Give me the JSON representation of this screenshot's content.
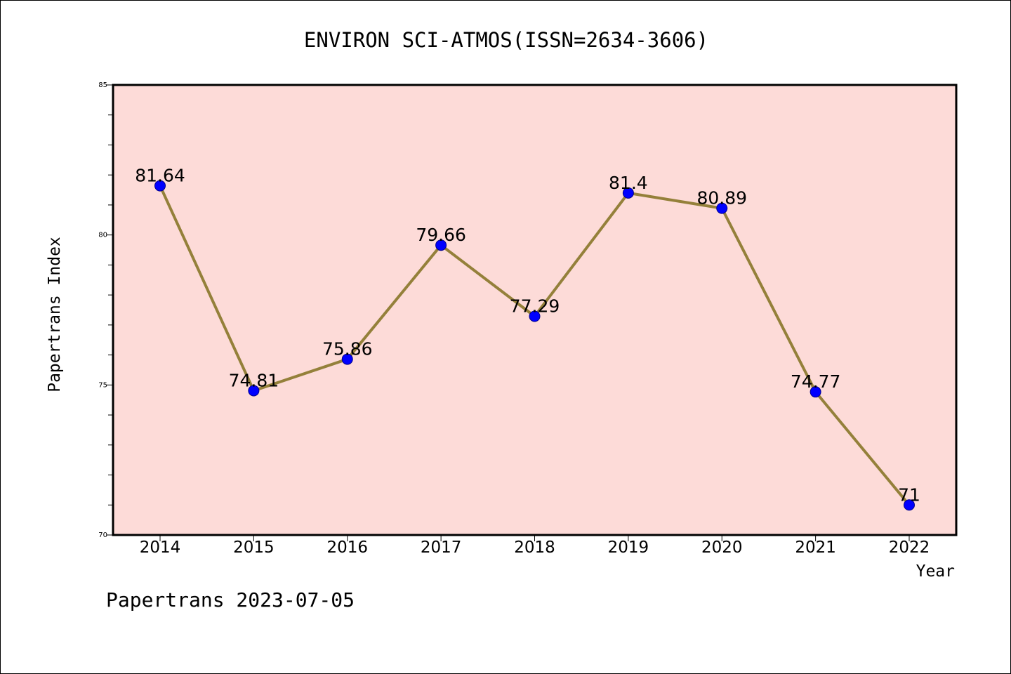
{
  "colors": {
    "plot_background": "#fddbd8",
    "line": "#94803a",
    "marker": "#0000ff",
    "marker_edge": "#00008b"
  },
  "footer": "Papertrans 2023-07-05",
  "chart_data": {
    "type": "line",
    "title": "ENVIRON SCI-ATMOS(ISSN=2634-3606)",
    "xlabel": "Year",
    "ylabel": "Papertrans Index",
    "categories": [
      "2014",
      "2015",
      "2016",
      "2017",
      "2018",
      "2019",
      "2020",
      "2021",
      "2022"
    ],
    "series": [
      {
        "values": [
          81.64,
          74.81,
          75.86,
          79.66,
          77.29,
          81.4,
          80.89,
          74.77,
          71
        ],
        "labels": [
          "81.64",
          "74.81",
          "75.86",
          "79.66",
          "77.29",
          "81.4",
          "80.89",
          "74.77",
          "71"
        ]
      }
    ],
    "ylim": [
      70,
      85
    ],
    "yticks": [
      "70",
      "75",
      "80",
      "85"
    ],
    "y_minor_step": 1,
    "grid": false,
    "legend": "none"
  }
}
